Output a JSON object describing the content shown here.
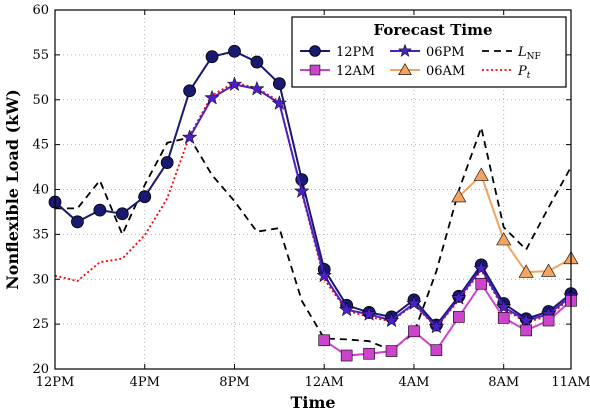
{
  "chart_data": {
    "type": "line",
    "xlabel": "Time",
    "ylabel": "Nonflexible Load (kW)",
    "ylim": [
      20,
      60
    ],
    "yticks": [
      20,
      25,
      30,
      35,
      40,
      45,
      50,
      55,
      60
    ],
    "xlim": [
      0,
      23
    ],
    "xticks": [
      0,
      4,
      8,
      12,
      16,
      20,
      23
    ],
    "xtick_labels": [
      "12PM",
      "4PM",
      "8PM",
      "12AM",
      "4AM",
      "8AM",
      "11AM"
    ],
    "grid": true,
    "legend": {
      "title": "Forecast Time",
      "position": "top-right"
    },
    "series": [
      {
        "name": "12PM",
        "color": "#191970",
        "marker": "circle",
        "line": "solid",
        "x": [
          0,
          1,
          2,
          3,
          4,
          5,
          6,
          7,
          8,
          9,
          10,
          11,
          12,
          13,
          14,
          15,
          16,
          17,
          18,
          19,
          20,
          21,
          22,
          23
        ],
        "values": [
          38.6,
          36.4,
          37.7,
          37.3,
          39.2,
          43.0,
          51.0,
          54.8,
          55.4,
          54.2,
          51.8,
          41.1,
          31.1,
          27.1,
          26.3,
          25.8,
          27.7,
          24.9,
          28.1,
          31.6,
          27.3,
          25.6,
          26.4,
          28.4
        ]
      },
      {
        "name": "06PM",
        "color": "#4b20c8",
        "marker": "star",
        "line": "solid",
        "x": [
          6,
          7,
          8,
          9,
          10,
          11,
          12,
          13,
          14,
          15,
          16,
          17,
          18,
          19,
          20,
          21,
          22,
          23
        ],
        "values": [
          45.8,
          50.2,
          51.7,
          51.2,
          49.6,
          39.8,
          30.4,
          26.6,
          26.1,
          25.4,
          27.3,
          24.7,
          27.9,
          31.2,
          26.9,
          25.4,
          26.1,
          28.1
        ]
      },
      {
        "name": "12AM",
        "color": "#cc44cc",
        "marker": "square",
        "line": "solid",
        "x": [
          12,
          13,
          14,
          15,
          16,
          17,
          18,
          19,
          20,
          21,
          22,
          23
        ],
        "values": [
          23.2,
          21.5,
          21.7,
          22.0,
          24.2,
          22.1,
          25.8,
          29.5,
          25.7,
          24.3,
          25.4,
          27.6
        ]
      },
      {
        "name": "06AM",
        "color": "#f4a460",
        "marker": "triangle",
        "line": "solid",
        "x": [
          18,
          19,
          20,
          21,
          22,
          23
        ],
        "values": [
          39.2,
          41.6,
          34.4,
          30.8,
          30.9,
          32.3
        ]
      },
      {
        "name": "L_NF",
        "label_main": "L",
        "label_sub": "NF",
        "color": "#000000",
        "marker": "none",
        "line": "dashed",
        "x": [
          0,
          1,
          2,
          3,
          4,
          5,
          6,
          7,
          8,
          9,
          10,
          11,
          12,
          13,
          14,
          15,
          16,
          17,
          18,
          19,
          20,
          21,
          22,
          23
        ],
        "values": [
          37.9,
          37.9,
          41.0,
          35.0,
          40.5,
          45.2,
          45.8,
          41.6,
          38.7,
          35.3,
          35.7,
          27.6,
          23.4,
          23.3,
          23.1,
          22.1,
          24.0,
          30.9,
          39.9,
          46.9,
          35.8,
          33.3,
          38.0,
          42.5
        ]
      },
      {
        "name": "P_t",
        "label_main": "P",
        "label_sub": "t",
        "color": "#ff0000",
        "marker": "none",
        "line": "dotted",
        "x": [
          0,
          1,
          2,
          3,
          4,
          5,
          6,
          7,
          8,
          9,
          10,
          11,
          12,
          13,
          14,
          15,
          16,
          17,
          18,
          19,
          20,
          21,
          22,
          23
        ],
        "values": [
          30.4,
          29.8,
          31.9,
          32.3,
          34.9,
          39.0,
          46.0,
          50.5,
          51.9,
          51.3,
          49.8,
          39.6,
          30.0,
          26.5,
          25.8,
          25.3,
          27.2,
          24.6,
          27.7,
          31.0,
          26.7,
          25.2,
          25.9,
          27.9
        ]
      }
    ],
    "legend_order": [
      [
        0,
        1,
        4
      ],
      [
        2,
        3,
        5
      ]
    ]
  }
}
